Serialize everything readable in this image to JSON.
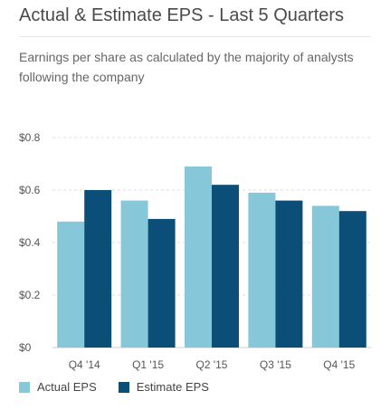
{
  "header": {
    "title": "Actual & Estimate EPS - Last 5 Quarters",
    "subtitle": "Earnings per share as calculated by the majority of analysts following the company"
  },
  "colors": {
    "actual": "#86c8d9",
    "estimate": "#0b4f78",
    "grid": "#dddddd",
    "axis_text": "#555555"
  },
  "chart_data": {
    "type": "bar",
    "categories": [
      "Q4 '14",
      "Q1 '15",
      "Q2 '15",
      "Q3 '15",
      "Q4 '15"
    ],
    "series": [
      {
        "name": "Actual EPS",
        "values": [
          0.48,
          0.56,
          0.69,
          0.59,
          0.54
        ]
      },
      {
        "name": "Estimate EPS",
        "values": [
          0.6,
          0.49,
          0.62,
          0.56,
          0.52
        ]
      }
    ],
    "y_ticks": [
      "$0",
      "$0.2",
      "$0.4",
      "$0.6",
      "$0.8"
    ],
    "ylim": [
      0,
      0.8
    ],
    "grid": true,
    "legend_position": "bottom-left"
  }
}
